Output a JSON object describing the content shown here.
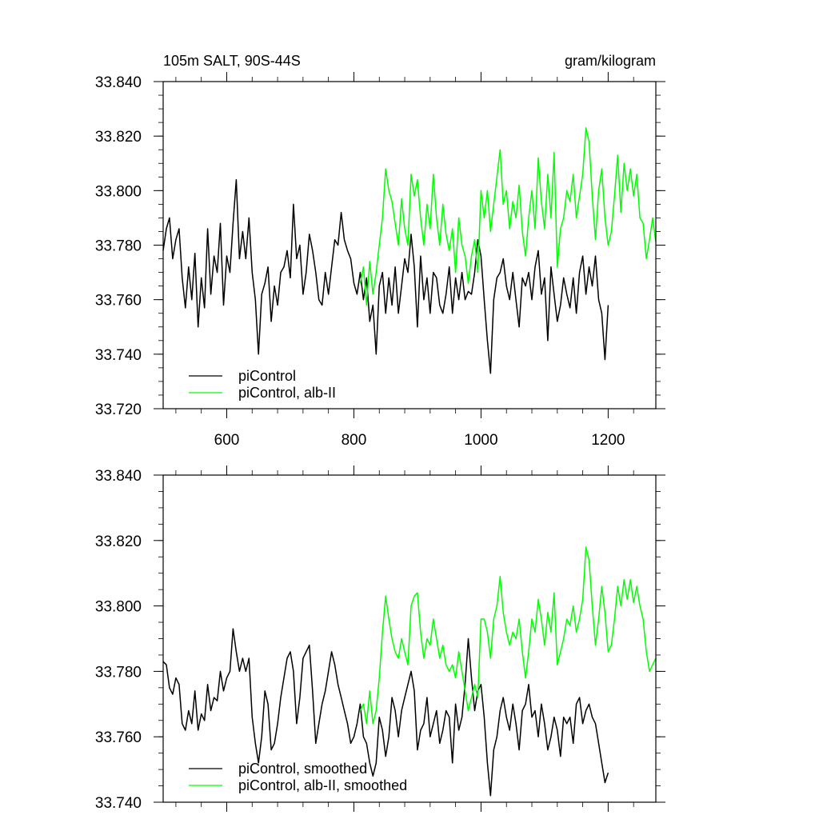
{
  "chart_data": [
    {
      "type": "line",
      "title_left": "105m SALT, 90S-44S",
      "title_right": "gram/kilogram",
      "xlabel": "",
      "ylabel": "",
      "xlim": [
        500,
        1275
      ],
      "ylim": [
        33.72,
        33.84
      ],
      "x_ticks": [
        600,
        800,
        1000,
        1200
      ],
      "y_ticks": [
        33.72,
        33.74,
        33.76,
        33.78,
        33.8,
        33.82,
        33.84
      ],
      "x_tick_labels": [
        "600",
        "800",
        "1000",
        "1200"
      ],
      "y_tick_labels": [
        "33.720",
        "33.740",
        "33.760",
        "33.780",
        "33.800",
        "33.820",
        "33.840"
      ],
      "grid": false,
      "legend_position": "bottom-left",
      "series": [
        {
          "name": "piControl",
          "color": "#000000",
          "x": [
            500,
            505,
            510,
            515,
            520,
            525,
            530,
            535,
            540,
            545,
            550,
            555,
            560,
            565,
            570,
            575,
            580,
            585,
            590,
            595,
            600,
            605,
            610,
            615,
            620,
            625,
            630,
            635,
            640,
            645,
            650,
            655,
            660,
            665,
            670,
            675,
            680,
            685,
            690,
            695,
            700,
            705,
            710,
            715,
            720,
            725,
            730,
            735,
            740,
            745,
            750,
            755,
            760,
            765,
            770,
            775,
            780,
            785,
            790,
            795,
            800,
            805,
            810,
            815,
            820,
            825,
            830,
            835,
            840,
            845,
            850,
            855,
            860,
            865,
            870,
            875,
            880,
            885,
            890,
            895,
            900,
            905,
            910,
            915,
            920,
            925,
            930,
            935,
            940,
            945,
            950,
            955,
            960,
            965,
            970,
            975,
            980,
            985,
            990,
            995,
            1000,
            1005,
            1010,
            1015,
            1020,
            1025,
            1030,
            1035,
            1040,
            1045,
            1050,
            1055,
            1060,
            1065,
            1070,
            1075,
            1080,
            1085,
            1090,
            1095,
            1100,
            1105,
            1110,
            1115,
            1120,
            1125,
            1130,
            1135,
            1140,
            1145,
            1150,
            1155,
            1160,
            1165,
            1170,
            1175,
            1180,
            1185,
            1190,
            1195,
            1200
          ],
          "y": [
            33.778,
            33.786,
            33.79,
            33.775,
            33.782,
            33.786,
            33.768,
            33.757,
            33.772,
            33.76,
            33.777,
            33.75,
            33.768,
            33.757,
            33.786,
            33.762,
            33.776,
            33.77,
            33.788,
            33.758,
            33.776,
            33.77,
            33.788,
            33.804,
            33.775,
            33.785,
            33.775,
            33.79,
            33.77,
            33.76,
            33.74,
            33.762,
            33.766,
            33.772,
            33.752,
            33.765,
            33.758,
            33.77,
            33.772,
            33.778,
            33.768,
            33.795,
            33.775,
            33.78,
            33.762,
            33.77,
            33.784,
            33.778,
            33.77,
            33.76,
            33.758,
            33.77,
            33.762,
            33.772,
            33.782,
            33.78,
            33.792,
            33.782,
            33.778,
            33.775,
            33.766,
            33.762,
            33.77,
            33.76,
            33.768,
            33.752,
            33.758,
            33.74,
            33.765,
            33.77,
            33.755,
            33.768,
            33.758,
            33.772,
            33.755,
            33.765,
            33.775,
            33.77,
            33.784,
            33.772,
            33.75,
            33.776,
            33.76,
            33.768,
            33.755,
            33.77,
            33.768,
            33.758,
            33.755,
            33.762,
            33.772,
            33.755,
            33.768,
            33.76,
            33.77,
            33.76,
            33.763,
            33.762,
            33.77,
            33.782,
            33.776,
            33.76,
            33.745,
            33.733,
            33.76,
            33.768,
            33.77,
            33.775,
            33.765,
            33.76,
            33.77,
            33.76,
            33.75,
            33.768,
            33.765,
            33.77,
            33.76,
            33.772,
            33.778,
            33.762,
            33.768,
            33.745,
            33.772,
            33.762,
            33.752,
            33.758,
            33.768,
            33.762,
            33.757,
            33.768,
            33.755,
            33.77,
            33.776,
            33.762,
            33.772,
            33.765,
            33.776,
            33.76,
            33.755,
            33.738,
            33.758
          ]
        },
        {
          "name": "piControl, alb-II",
          "color": "#00ff00",
          "x": [
            810,
            815,
            820,
            825,
            830,
            835,
            840,
            845,
            850,
            855,
            860,
            865,
            870,
            875,
            880,
            885,
            890,
            895,
            900,
            905,
            910,
            915,
            920,
            925,
            930,
            935,
            940,
            945,
            950,
            955,
            960,
            965,
            970,
            975,
            980,
            985,
            990,
            995,
            1000,
            1005,
            1010,
            1015,
            1020,
            1025,
            1030,
            1035,
            1040,
            1045,
            1050,
            1055,
            1060,
            1065,
            1070,
            1075,
            1080,
            1085,
            1090,
            1095,
            1100,
            1105,
            1110,
            1115,
            1120,
            1125,
            1130,
            1135,
            1140,
            1145,
            1150,
            1155,
            1160,
            1165,
            1170,
            1175,
            1180,
            1185,
            1190,
            1195,
            1200,
            1205,
            1210,
            1215,
            1220,
            1225,
            1230,
            1235,
            1240,
            1245,
            1250,
            1255,
            1260,
            1265,
            1270,
            1275
          ],
          "y": [
            33.766,
            33.772,
            33.758,
            33.774,
            33.762,
            33.77,
            33.78,
            33.79,
            33.808,
            33.8,
            33.796,
            33.788,
            33.78,
            33.797,
            33.786,
            33.78,
            33.806,
            33.798,
            33.804,
            33.79,
            33.78,
            33.795,
            33.786,
            33.806,
            33.79,
            33.78,
            33.795,
            33.784,
            33.778,
            33.786,
            33.77,
            33.79,
            33.78,
            33.776,
            33.766,
            33.776,
            33.782,
            33.77,
            33.8,
            33.79,
            33.8,
            33.785,
            33.795,
            33.805,
            33.815,
            33.795,
            33.8,
            33.786,
            33.796,
            33.79,
            33.802,
            33.785,
            33.776,
            33.79,
            33.8,
            33.786,
            33.812,
            33.796,
            33.786,
            33.806,
            33.79,
            33.814,
            33.772,
            33.786,
            33.79,
            33.8,
            33.796,
            33.806,
            33.79,
            33.798,
            33.806,
            33.823,
            33.818,
            33.798,
            33.782,
            33.8,
            33.808,
            33.79,
            33.78,
            33.785,
            33.798,
            33.813,
            33.792,
            33.81,
            33.8,
            33.808,
            33.798,
            33.806,
            33.79,
            33.788,
            33.775,
            33.782,
            33.79,
            33.781
          ]
        }
      ]
    },
    {
      "type": "line",
      "title_left": "",
      "title_right": "",
      "xlabel": "",
      "ylabel": "",
      "xlim": [
        500,
        1275
      ],
      "ylim": [
        33.74,
        33.84
      ],
      "x_ticks": [
        600,
        800,
        1000,
        1200
      ],
      "y_ticks": [
        33.74,
        33.76,
        33.78,
        33.8,
        33.82,
        33.84
      ],
      "y_tick_labels": [
        "33.740",
        "33.760",
        "33.780",
        "33.800",
        "33.820",
        "33.840"
      ],
      "grid": false,
      "legend_position": "bottom-left",
      "series": [
        {
          "name": "piControl, smoothed",
          "color": "#000000",
          "x": [
            500,
            505,
            510,
            515,
            520,
            525,
            530,
            535,
            540,
            545,
            550,
            555,
            560,
            565,
            570,
            575,
            580,
            585,
            590,
            595,
            600,
            605,
            610,
            615,
            620,
            625,
            630,
            635,
            640,
            645,
            650,
            655,
            660,
            665,
            670,
            675,
            680,
            685,
            690,
            695,
            700,
            705,
            710,
            715,
            720,
            725,
            730,
            735,
            740,
            745,
            750,
            755,
            760,
            765,
            770,
            775,
            780,
            785,
            790,
            795,
            800,
            805,
            810,
            815,
            820,
            825,
            830,
            835,
            840,
            845,
            850,
            855,
            860,
            865,
            870,
            875,
            880,
            885,
            890,
            895,
            900,
            905,
            910,
            915,
            920,
            925,
            930,
            935,
            940,
            945,
            950,
            955,
            960,
            965,
            970,
            975,
            980,
            985,
            990,
            995,
            1000,
            1005,
            1010,
            1015,
            1020,
            1025,
            1030,
            1035,
            1040,
            1045,
            1050,
            1055,
            1060,
            1065,
            1070,
            1075,
            1080,
            1085,
            1090,
            1095,
            1100,
            1105,
            1110,
            1115,
            1120,
            1125,
            1130,
            1135,
            1140,
            1145,
            1150,
            1155,
            1160,
            1165,
            1170,
            1175,
            1180,
            1185,
            1190,
            1195,
            1200
          ],
          "y": [
            33.783,
            33.782,
            33.775,
            33.773,
            33.778,
            33.776,
            33.764,
            33.762,
            33.768,
            33.764,
            33.774,
            33.762,
            33.767,
            33.765,
            33.776,
            33.768,
            33.772,
            33.771,
            33.78,
            33.774,
            33.778,
            33.78,
            33.793,
            33.786,
            33.78,
            33.784,
            33.78,
            33.784,
            33.766,
            33.758,
            33.752,
            33.76,
            33.774,
            33.77,
            33.756,
            33.758,
            33.764,
            33.772,
            33.778,
            33.784,
            33.786,
            33.78,
            33.764,
            33.772,
            33.784,
            33.786,
            33.788,
            33.774,
            33.758,
            33.764,
            33.77,
            33.774,
            33.78,
            33.786,
            33.782,
            33.776,
            33.772,
            33.768,
            33.764,
            33.758,
            33.76,
            33.764,
            33.77,
            33.76,
            33.758,
            33.752,
            33.748,
            33.752,
            33.766,
            33.762,
            33.754,
            33.76,
            33.772,
            33.768,
            33.76,
            33.768,
            33.772,
            33.776,
            33.78,
            33.774,
            33.756,
            33.762,
            33.764,
            33.772,
            33.76,
            33.764,
            33.768,
            33.758,
            33.762,
            33.768,
            33.766,
            33.752,
            33.77,
            33.762,
            33.766,
            33.776,
            33.79,
            33.778,
            33.768,
            33.774,
            33.776,
            33.766,
            33.752,
            33.742,
            33.756,
            33.76,
            33.768,
            33.772,
            33.766,
            33.762,
            33.77,
            33.764,
            33.756,
            33.768,
            33.77,
            33.776,
            33.766,
            33.768,
            33.76,
            33.77,
            33.764,
            33.756,
            33.76,
            33.766,
            33.762,
            33.754,
            33.766,
            33.764,
            33.766,
            33.758,
            33.77,
            33.772,
            33.764,
            33.768,
            33.77,
            33.766,
            33.764,
            33.758,
            33.752,
            33.746,
            33.749
          ]
        },
        {
          "name": "piControl, alb-II, smoothed",
          "color": "#00ff00",
          "x": [
            810,
            815,
            820,
            825,
            830,
            835,
            840,
            845,
            850,
            855,
            860,
            865,
            870,
            875,
            880,
            885,
            890,
            895,
            900,
            905,
            910,
            915,
            920,
            925,
            930,
            935,
            940,
            945,
            950,
            955,
            960,
            965,
            970,
            975,
            980,
            985,
            990,
            995,
            1000,
            1005,
            1010,
            1015,
            1020,
            1025,
            1030,
            1035,
            1040,
            1045,
            1050,
            1055,
            1060,
            1065,
            1070,
            1075,
            1080,
            1085,
            1090,
            1095,
            1100,
            1105,
            1110,
            1115,
            1120,
            1125,
            1130,
            1135,
            1140,
            1145,
            1150,
            1155,
            1160,
            1165,
            1170,
            1175,
            1180,
            1185,
            1190,
            1195,
            1200,
            1205,
            1210,
            1215,
            1220,
            1225,
            1230,
            1235,
            1240,
            1245,
            1250,
            1255,
            1260,
            1265,
            1270,
            1275
          ],
          "y": [
            33.768,
            33.77,
            33.764,
            33.774,
            33.764,
            33.768,
            33.778,
            33.792,
            33.803,
            33.796,
            33.79,
            33.786,
            33.784,
            33.79,
            33.786,
            33.782,
            33.8,
            33.803,
            33.804,
            33.792,
            33.784,
            33.79,
            33.788,
            33.796,
            33.79,
            33.784,
            33.788,
            33.782,
            33.78,
            33.782,
            33.778,
            33.786,
            33.78,
            33.774,
            33.768,
            33.772,
            33.776,
            33.772,
            33.796,
            33.796,
            33.792,
            33.784,
            33.796,
            33.8,
            33.809,
            33.798,
            33.792,
            33.788,
            33.792,
            33.79,
            33.796,
            33.786,
            33.778,
            33.786,
            33.796,
            33.792,
            33.802,
            33.796,
            33.788,
            33.798,
            33.792,
            33.804,
            33.782,
            33.786,
            33.79,
            33.796,
            33.794,
            33.8,
            33.792,
            33.796,
            33.802,
            33.818,
            33.814,
            33.8,
            33.788,
            33.796,
            33.806,
            33.798,
            33.786,
            33.788,
            33.796,
            33.806,
            33.8,
            33.808,
            33.802,
            33.808,
            33.801,
            33.806,
            33.8,
            33.796,
            33.786,
            33.78,
            33.782,
            33.784
          ]
        }
      ]
    }
  ]
}
